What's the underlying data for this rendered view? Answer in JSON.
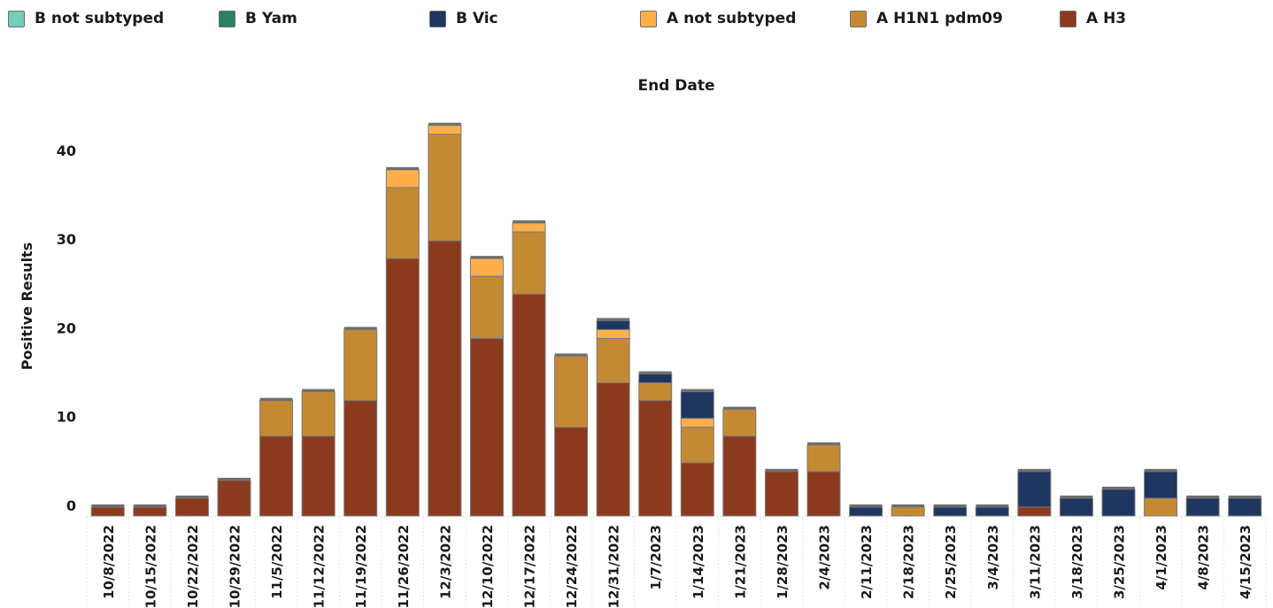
{
  "chart_data": {
    "type": "bar",
    "stacked": true,
    "xlabel": "End Date",
    "ylabel": "Positive Results",
    "ylim": [
      0,
      45
    ],
    "yticks": [
      0,
      10,
      20,
      30,
      40
    ],
    "grid": false,
    "legend_position": "top",
    "categories": [
      "10/8/2022",
      "10/15/2022",
      "10/22/2022",
      "10/29/2022",
      "11/5/2022",
      "11/12/2022",
      "11/19/2022",
      "11/26/2022",
      "12/3/2022",
      "12/10/2022",
      "12/17/2022",
      "12/24/2022",
      "12/31/2022",
      "1/7/2023",
      "1/14/2023",
      "1/21/2023",
      "1/28/2023",
      "2/4/2023",
      "2/11/2023",
      "2/18/2023",
      "2/25/2023",
      "3/4/2023",
      "3/11/2023",
      "3/18/2023",
      "3/25/2023",
      "4/1/2023",
      "4/8/2023",
      "4/15/2023"
    ],
    "series": [
      {
        "name": "A H3",
        "color": "#8b3a1e",
        "values": [
          1,
          1,
          2,
          4,
          9,
          9,
          13,
          29,
          31,
          20,
          25,
          10,
          15,
          13,
          6,
          9,
          5,
          5,
          0,
          0,
          0,
          0,
          1,
          0,
          0,
          0,
          0,
          0
        ]
      },
      {
        "name": "A H1N1 pdm09",
        "color": "#c48a33",
        "values": [
          0,
          0,
          0,
          0,
          4,
          5,
          8,
          8,
          12,
          7,
          7,
          8,
          5,
          2,
          4,
          3,
          0,
          3,
          0,
          1,
          0,
          0,
          0,
          0,
          0,
          2,
          0,
          0
        ]
      },
      {
        "name": "A not subtyped",
        "color": "#fdb04a",
        "values": [
          0,
          0,
          0,
          0,
          0,
          0,
          0,
          2,
          1,
          2,
          1,
          0,
          1,
          0,
          1,
          0,
          0,
          0,
          0,
          0,
          0,
          0,
          0,
          0,
          0,
          0,
          0,
          0
        ]
      },
      {
        "name": "B Vic",
        "color": "#1f3660",
        "values": [
          0,
          0,
          0,
          0,
          0,
          0,
          0,
          0,
          0,
          0,
          0,
          0,
          1,
          1,
          3,
          0,
          0,
          0,
          1,
          0,
          1,
          1,
          4,
          2,
          3,
          3,
          2,
          2
        ]
      },
      {
        "name": "B Yam",
        "color": "#2a8063",
        "values": [
          0,
          0,
          0,
          0,
          0,
          0,
          0,
          0,
          0,
          0,
          0,
          0,
          0,
          0,
          0,
          0,
          0,
          0,
          0,
          0,
          0,
          0,
          0,
          0,
          0,
          0,
          0,
          0
        ]
      },
      {
        "name": "B not subtyped",
        "color": "#6fcfb8",
        "values": [
          0,
          0,
          0,
          0,
          0,
          0,
          0,
          0,
          0,
          0,
          0,
          0,
          0,
          0,
          0,
          0,
          0,
          0,
          0,
          0,
          0,
          0,
          0,
          0,
          0,
          0,
          0,
          0
        ]
      }
    ],
    "legend": [
      {
        "name": "B not subtyped",
        "color": "#6fcfb8"
      },
      {
        "name": "B Yam",
        "color": "#2a8063"
      },
      {
        "name": "B Vic",
        "color": "#1f3660"
      },
      {
        "name": "A not subtyped",
        "color": "#fdb04a"
      },
      {
        "name": "A H1N1 pdm09",
        "color": "#c48a33"
      },
      {
        "name": "A H3",
        "color": "#8b3a1e"
      }
    ]
  }
}
